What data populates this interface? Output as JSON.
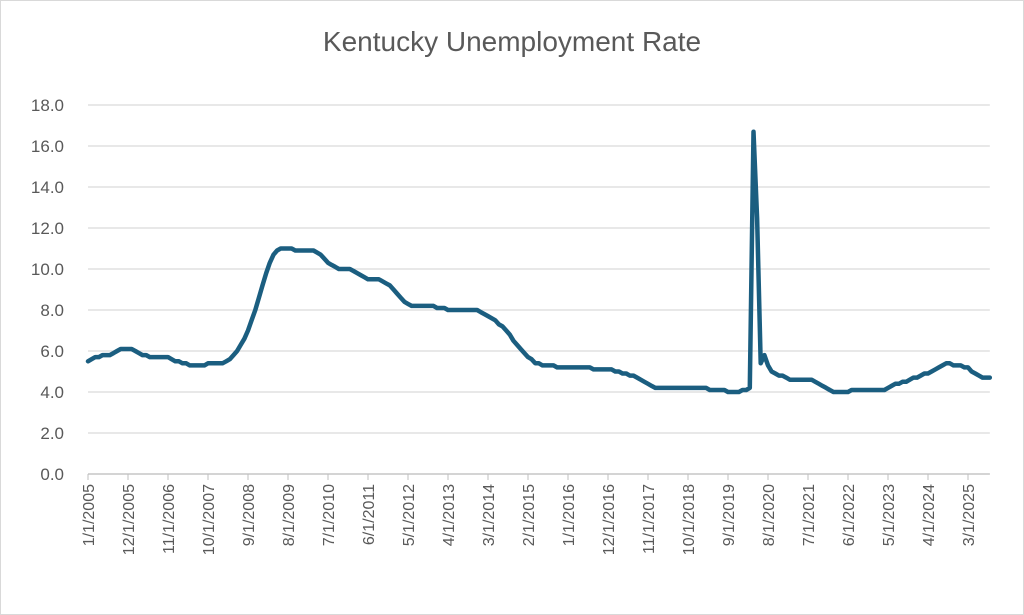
{
  "chart_data": {
    "type": "line",
    "title": "Kentucky Unemployment Rate",
    "xlabel": "",
    "ylabel": "",
    "x_start": "1/1/2005",
    "x_end": "9/1/2025",
    "x_frequency": "monthly",
    "ylim": [
      0,
      18
    ],
    "y_ticks": [
      "0.0",
      "2.0",
      "4.0",
      "6.0",
      "8.0",
      "10.0",
      "12.0",
      "14.0",
      "16.0",
      "18.0"
    ],
    "x_tick_labels": [
      "1/1/2005",
      "12/1/2005",
      "11/1/2006",
      "10/1/2007",
      "9/1/2008",
      "8/1/2009",
      "7/1/2010",
      "6/1/2011",
      "5/1/2012",
      "4/1/2013",
      "3/1/2014",
      "2/1/2015",
      "1/1/2016",
      "12/1/2016",
      "11/1/2017",
      "10/1/2018",
      "9/1/2019",
      "8/1/2020",
      "7/1/2021",
      "6/1/2022",
      "5/1/2023",
      "4/1/2024",
      "3/1/2025"
    ],
    "grid": "horizontal",
    "legend": "none",
    "line_color": "#1b5e80",
    "values": [
      5.5,
      5.6,
      5.7,
      5.7,
      5.8,
      5.8,
      5.8,
      5.9,
      6.0,
      6.1,
      6.1,
      6.1,
      6.1,
      6.0,
      5.9,
      5.8,
      5.8,
      5.7,
      5.7,
      5.7,
      5.7,
      5.7,
      5.7,
      5.6,
      5.5,
      5.5,
      5.4,
      5.4,
      5.3,
      5.3,
      5.3,
      5.3,
      5.3,
      5.4,
      5.4,
      5.4,
      5.4,
      5.4,
      5.5,
      5.6,
      5.8,
      6.0,
      6.3,
      6.6,
      7.0,
      7.5,
      8.0,
      8.6,
      9.2,
      9.8,
      10.3,
      10.7,
      10.9,
      11.0,
      11.0,
      11.0,
      11.0,
      10.9,
      10.9,
      10.9,
      10.9,
      10.9,
      10.9,
      10.8,
      10.7,
      10.5,
      10.3,
      10.2,
      10.1,
      10.0,
      10.0,
      10.0,
      10.0,
      9.9,
      9.8,
      9.7,
      9.6,
      9.5,
      9.5,
      9.5,
      9.5,
      9.4,
      9.3,
      9.2,
      9.0,
      8.8,
      8.6,
      8.4,
      8.3,
      8.2,
      8.2,
      8.2,
      8.2,
      8.2,
      8.2,
      8.2,
      8.1,
      8.1,
      8.1,
      8.0,
      8.0,
      8.0,
      8.0,
      8.0,
      8.0,
      8.0,
      8.0,
      8.0,
      7.9,
      7.8,
      7.7,
      7.6,
      7.5,
      7.3,
      7.2,
      7.0,
      6.8,
      6.5,
      6.3,
      6.1,
      5.9,
      5.7,
      5.6,
      5.4,
      5.4,
      5.3,
      5.3,
      5.3,
      5.3,
      5.2,
      5.2,
      5.2,
      5.2,
      5.2,
      5.2,
      5.2,
      5.2,
      5.2,
      5.2,
      5.1,
      5.1,
      5.1,
      5.1,
      5.1,
      5.1,
      5.0,
      5.0,
      4.9,
      4.9,
      4.8,
      4.8,
      4.7,
      4.6,
      4.5,
      4.4,
      4.3,
      4.2,
      4.2,
      4.2,
      4.2,
      4.2,
      4.2,
      4.2,
      4.2,
      4.2,
      4.2,
      4.2,
      4.2,
      4.2,
      4.2,
      4.2,
      4.1,
      4.1,
      4.1,
      4.1,
      4.1,
      4.0,
      4.0,
      4.0,
      4.0,
      4.1,
      4.1,
      4.2,
      16.7,
      12.5,
      5.4,
      5.8,
      5.3,
      5.0,
      4.9,
      4.8,
      4.8,
      4.7,
      4.6,
      4.6,
      4.6,
      4.6,
      4.6,
      4.6,
      4.6,
      4.5,
      4.4,
      4.3,
      4.2,
      4.1,
      4.0,
      4.0,
      4.0,
      4.0,
      4.0,
      4.1,
      4.1,
      4.1,
      4.1,
      4.1,
      4.1,
      4.1,
      4.1,
      4.1,
      4.1,
      4.2,
      4.3,
      4.4,
      4.4,
      4.5,
      4.5,
      4.6,
      4.7,
      4.7,
      4.8,
      4.9,
      4.9,
      5.0,
      5.1,
      5.2,
      5.3,
      5.4,
      5.4,
      5.3,
      5.3,
      5.3,
      5.2,
      5.2,
      5.0,
      4.9,
      4.8,
      4.7,
      4.7,
      4.7
    ]
  }
}
